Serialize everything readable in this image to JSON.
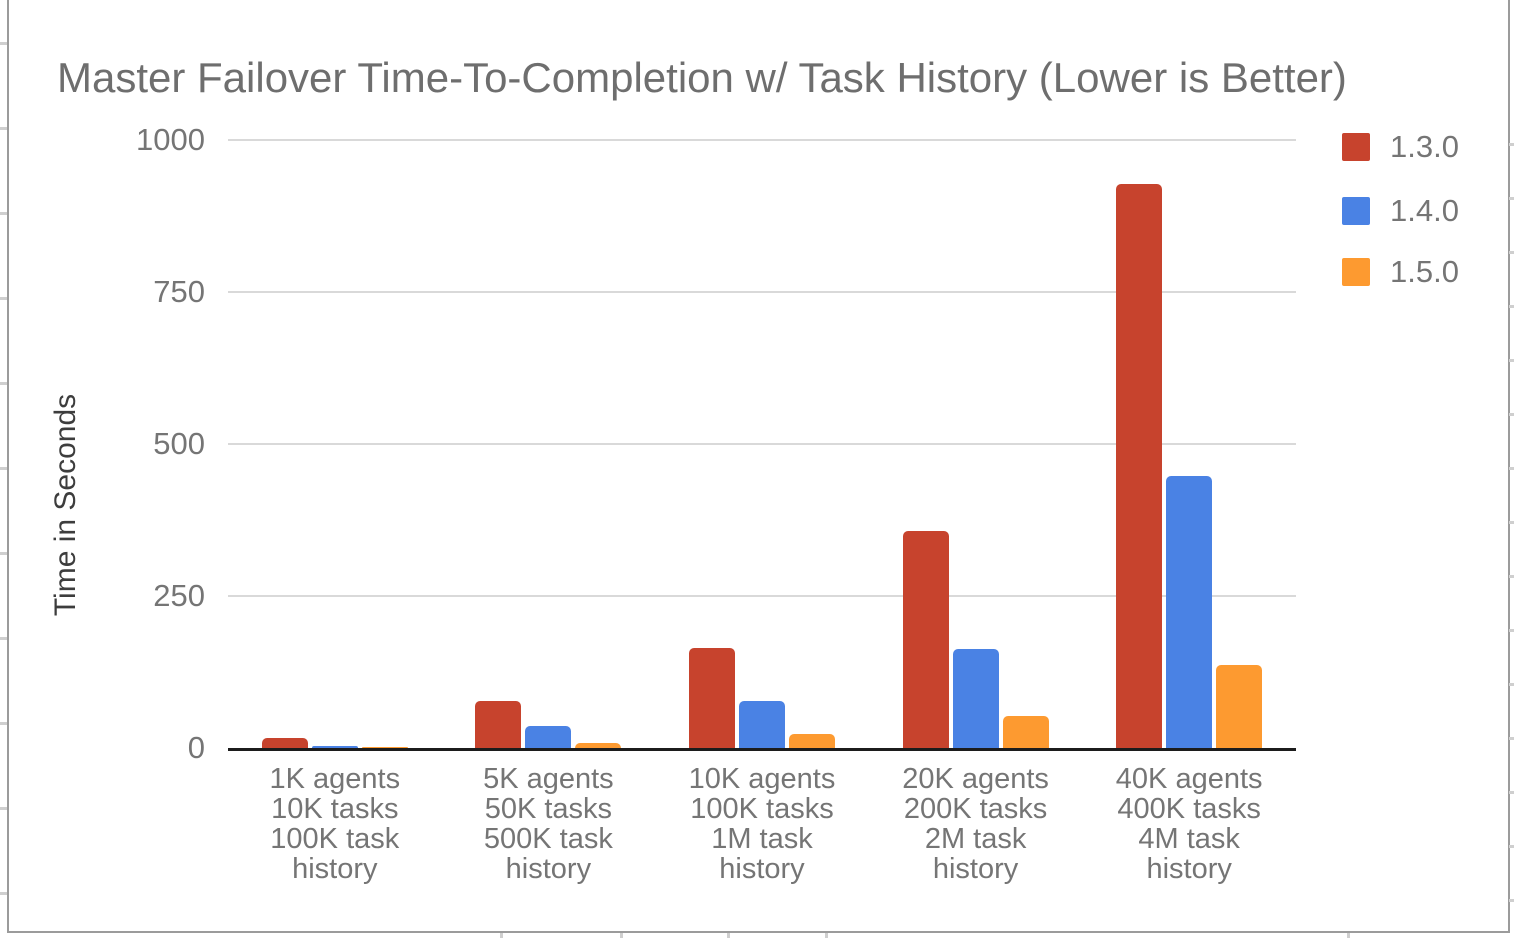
{
  "chart": {
    "title": "Master Failover Time-To-Completion w/ Task History (Lower is Better)",
    "y_axis_title": "Time in Seconds",
    "categories_lines": [
      [
        "1K agents",
        "10K tasks",
        "100K task",
        "history"
      ],
      [
        "5K agents",
        "50K tasks",
        "500K task",
        "history"
      ],
      [
        "10K agents",
        "100K tasks",
        "1M task",
        "history"
      ],
      [
        "20K agents",
        "200K tasks",
        "2M task",
        "history"
      ],
      [
        "40K agents",
        "400K tasks",
        "4M task",
        "history"
      ]
    ],
    "colors": {
      "grid": "#d9d9d9",
      "axis": "#1c1c1c",
      "text_gray": "#757575"
    }
  },
  "chart_data": {
    "type": "bar",
    "title": "Master Failover Time-To-Completion w/ Task History (Lower is Better)",
    "xlabel": "",
    "ylabel": "Time in Seconds",
    "ylim": [
      0,
      1000
    ],
    "yticks": [
      0,
      250,
      500,
      750,
      1000
    ],
    "grid": true,
    "legend_position": "top-right",
    "categories": [
      "1K agents 10K tasks 100K task history",
      "5K agents 50K tasks 500K task history",
      "10K agents 100K tasks 1M task history",
      "20K agents 200K tasks 2M task history",
      "40K agents 400K tasks 4M task history"
    ],
    "series": [
      {
        "name": "1.3.0",
        "color": "#c7432d",
        "values": [
          17,
          78,
          165,
          357,
          927
        ]
      },
      {
        "name": "1.4.0",
        "color": "#4a82e4",
        "values": [
          4,
          37,
          78,
          163,
          447
        ]
      },
      {
        "name": "1.5.0",
        "color": "#fd9a30",
        "values": [
          1,
          8,
          23,
          52,
          137
        ]
      }
    ]
  }
}
